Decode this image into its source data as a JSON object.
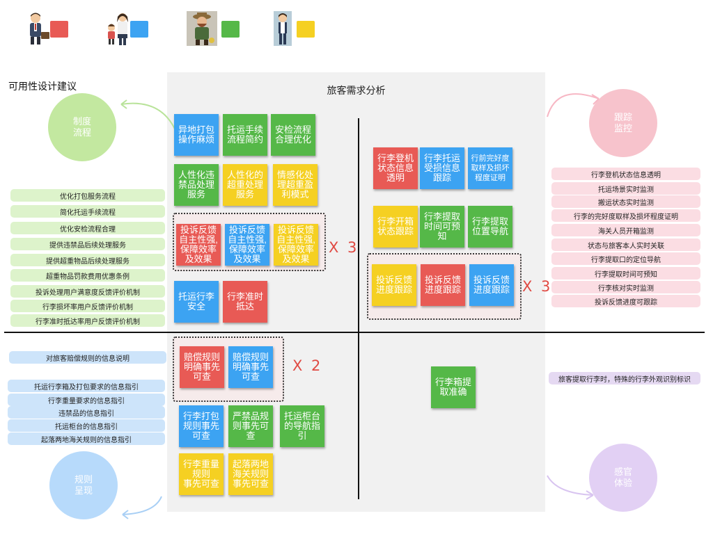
{
  "colors": {
    "red": "#E85A55",
    "blue": "#3CA3F2",
    "green": "#55B848",
    "yellow": "#F5D022",
    "green_circle": "#C3E8A0",
    "pink_circle": "#F7C3CC",
    "blue_circle": "#B7DAFB",
    "lilac_circle": "#E2D0F4",
    "green_pill": "#DDF3CB",
    "pink_pill": "#FBDDE3",
    "blue_pill": "#CDE4FA",
    "lilac_pill": "#E5D9F2",
    "red_text": "#E04A43"
  },
  "personas": [
    {
      "name": "business-traveler-avatar",
      "swatch": "red"
    },
    {
      "name": "parent-with-child-avatar",
      "swatch": "blue"
    },
    {
      "name": "elderly-traveler-avatar",
      "swatch": "green"
    },
    {
      "name": "young-traveler-avatar",
      "swatch": "yellow"
    }
  ],
  "side_title": "可用性设计建议",
  "panel_title": "旅客需求分析",
  "circles": {
    "institution": "制度\n流程",
    "tracking": "跟踪\n监控",
    "rules": "规则\n呈现",
    "sensory": "感官\n体验"
  },
  "notes_top_left": [
    {
      "text": "异地打包\n操作麻烦",
      "color": "blue"
    },
    {
      "text": "托运手续\n流程简约",
      "color": "green"
    },
    {
      "text": "安检流程\n合理优化",
      "color": "green"
    },
    {
      "text": "人性化违\n禁品处理\n服务",
      "color": "green"
    },
    {
      "text": "人性化的\n超重处理\n服务",
      "color": "yellow"
    },
    {
      "text": "情感化处\n理超重盈\n利模式",
      "color": "yellow"
    },
    {
      "text": "投诉反馈\n自主性强,\n保障效率\n及效果",
      "color": "red"
    },
    {
      "text": "投诉反馈\n自主性强,\n保障效率\n及效果",
      "color": "blue"
    },
    {
      "text": "投诉反馈\n自主性强,\n保障效率\n及效果",
      "color": "yellow"
    },
    {
      "text": "托运行李\n安全",
      "color": "blue"
    },
    {
      "text": "行李准时\n抵达",
      "color": "red"
    }
  ],
  "notes_top_right": [
    {
      "text": "行李登机\n状态信息\n透明",
      "color": "red"
    },
    {
      "text": "行李托运\n受损信息\n跟踪",
      "color": "blue"
    },
    {
      "text": "行前完好度\n取样及损坏\n程度证明",
      "color": "blue"
    },
    {
      "text": "行李开箱\n状态跟踪",
      "color": "yellow"
    },
    {
      "text": "行李提取\n时间可预\n知",
      "color": "green"
    },
    {
      "text": "行李提取\n位置导航",
      "color": "green"
    },
    {
      "text": "投诉反馈\n进度跟踪",
      "color": "yellow"
    },
    {
      "text": "投诉反馈\n进度跟踪",
      "color": "red"
    },
    {
      "text": "投诉反馈\n进度跟踪",
      "color": "blue"
    }
  ],
  "notes_bottom_left": [
    {
      "text": "赔偿规则\n明确事先\n可查",
      "color": "red"
    },
    {
      "text": "赔偿规则\n明确事先\n可查",
      "color": "blue"
    },
    {
      "text": "行李打包\n规则事先\n可查",
      "color": "blue"
    },
    {
      "text": "严禁品规\n则事先可\n查",
      "color": "green"
    },
    {
      "text": "托运柜台\n的导航指\n引",
      "color": "green"
    },
    {
      "text": "行李重量\n规则\n事先可查",
      "color": "yellow"
    },
    {
      "text": "起落两地\n海关规则\n事先可查",
      "color": "yellow"
    }
  ],
  "notes_bottom_right": [
    {
      "text": "行李箱提\n取准确",
      "color": "green"
    }
  ],
  "multipliers": {
    "top_left": "X 3",
    "top_right": "X 3",
    "bottom_left": "X 2"
  },
  "pills_left_top": [
    "优化打包服务流程",
    "简化托运手续流程",
    "优化安检流程合理",
    "提供违禁品后续处理服务",
    "提供超重物品后续处理服务",
    "超重物品罚款费用优惠条例",
    "投诉处理用户满意度反馈评价机制",
    "行李损坏率用户反馈评价机制",
    "行李准时抵达率用户反馈评价机制"
  ],
  "pills_left_bottom_single": "对旅客赔偿规则的信息说明",
  "pills_left_bottom": [
    "托运行李箱及打包要求的信息指引",
    "行李重量要求的信息指引",
    "违禁品的信息指引",
    "托运柜台的信息指引",
    "起落两地海关规则的信息指引"
  ],
  "pills_right_top": [
    "行李登机状态信息透明",
    "托运场景实时监测",
    "搬运状态实时监测",
    "行李的完好度取样及损坏程度证明",
    "海关人员开箱监测",
    "状态与旅客本人实时关联",
    "行李提取口的定位导航",
    "行李提取时间可预知",
    "行李核对实时监测",
    "投诉反馈进度可跟踪"
  ],
  "pill_right_bottom": "旅客提取行李时，特殊的行李外观识别标识"
}
